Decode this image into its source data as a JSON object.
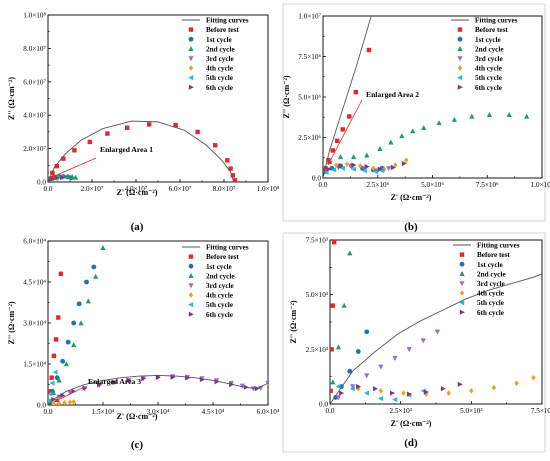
{
  "figure": {
    "panels": [
      {
        "id": "a",
        "panel_label": "(a)",
        "xlabel": "Z' (Ω·cm⁻²)",
        "ylabel": "Z'' (Ω·cm⁻²)",
        "xlim": [
          0,
          100000000
        ],
        "ylim": [
          0,
          100000000
        ],
        "x_ticks": [
          "0.0",
          "2.0×10⁷",
          "4.0×10⁷",
          "6.0×10⁷",
          "8.0×10⁷",
          "1.0×10⁸"
        ],
        "y_ticks": [
          "0.0",
          "2.0×10⁷",
          "4.0×10⁷",
          "6.0×10⁷",
          "8.0×10⁷",
          "1.0×10⁸"
        ],
        "annotation": "Enlarged Area 1"
      },
      {
        "id": "b",
        "panel_label": "(b)",
        "xlabel": "Z' (Ω·cm⁻²)",
        "ylabel": "Z'' (Ω·cm⁻²)",
        "xlim": [
          0,
          10000000
        ],
        "ylim": [
          0,
          10000000
        ],
        "x_ticks": [
          "0.0",
          "2.5×10⁶",
          "5.0×10⁶",
          "7.5×10⁶",
          "1.0×10⁷"
        ],
        "y_ticks": [
          "0.0",
          "2.5×10⁶",
          "5.0×10⁶",
          "7.5×10⁶",
          "1.0×10⁷"
        ],
        "annotation": "Enlarged Area 2"
      },
      {
        "id": "c",
        "panel_label": "(c)",
        "xlabel": "Z' (Ω·cm⁻²)",
        "ylabel": "Z'' (Ω·cm⁻²)",
        "xlim": [
          0,
          60000
        ],
        "ylim": [
          0,
          60000
        ],
        "x_ticks": [
          "0.0",
          "1.5×10⁴",
          "3.0×10⁴",
          "4.5×10⁴",
          "6.0×10⁴"
        ],
        "y_ticks": [
          "0.0",
          "1.5×10⁴",
          "3.0×10⁴",
          "4.5×10⁴",
          "6.0×10⁴"
        ],
        "annotation": "Enlarged Area 3"
      },
      {
        "id": "d",
        "panel_label": "(d)",
        "xlabel": "Z' (Ω·cm⁻²)",
        "ylabel": "Z'' (Ω·cm⁻²)",
        "xlim": [
          0,
          7500
        ],
        "ylim": [
          0,
          7500
        ],
        "x_ticks": [
          "0.0",
          "2.5×10³",
          "5.0×10³",
          "7.5×10³"
        ],
        "y_ticks": [
          "0.0",
          "2.5×10³",
          "5.0×10³",
          "7.5×10³"
        ],
        "annotation": ""
      }
    ],
    "legend": [
      {
        "label": "Fitting curves",
        "marker": "line",
        "color": "#555555"
      },
      {
        "label": "Before test",
        "marker": "square",
        "color": "#e8262c"
      },
      {
        "label": "1st cycle",
        "marker": "circle",
        "color": "#1f6fbf"
      },
      {
        "label": "2nd cycle",
        "marker": "triangle",
        "color": "#1a9e6a"
      },
      {
        "label": "3rd cycle",
        "marker": "tri-down",
        "color": "#9a6ad8"
      },
      {
        "label": "4th cycle",
        "marker": "diamond",
        "color": "#f0a018"
      },
      {
        "label": "5th cycle",
        "marker": "tri-left",
        "color": "#20c0c8"
      },
      {
        "label": "6th cycle",
        "marker": "tri-right",
        "color": "#7a3a7a"
      }
    ]
  },
  "chart_data": [
    {
      "type": "scatter",
      "panel": "a",
      "xlabel": "Z' (Ω·cm⁻²)",
      "ylabel": "Z'' (Ω·cm⁻²)",
      "xlim": [
        0,
        100000000
      ],
      "ylim": [
        0,
        100000000
      ],
      "legend_position": "top-right",
      "series": [
        {
          "name": "Before test",
          "x": [
            800000,
            2000000,
            4000000,
            7000000,
            12000000,
            19000000,
            27000000,
            36000000,
            46000000,
            58000000,
            68000000,
            76000000,
            81500000,
            83000000,
            84000000,
            85000000
          ],
          "y": [
            2000000,
            5500000,
            9500000,
            14000000,
            19000000,
            24000000,
            29000000,
            32500000,
            34500000,
            34000000,
            30000000,
            22000000,
            13000000,
            8000000,
            4000000,
            1000000
          ]
        },
        {
          "name": "1st cycle",
          "x": [
            500000,
            1500000,
            3000000,
            5000000,
            7000000,
            9000000,
            10500000
          ],
          "y": [
            1000000,
            2200000,
            3000000,
            3300000,
            3300000,
            3000000,
            2500000
          ]
        },
        {
          "name": "2nd cycle",
          "x": [
            400000,
            1500000,
            3000000,
            5000000,
            7000000,
            9000000,
            11000000,
            12500000
          ],
          "y": [
            1200000,
            2200000,
            3000000,
            3400000,
            3500000,
            3400000,
            3100000,
            2700000
          ]
        },
        {
          "name": "3rd cycle",
          "x": [
            600000,
            2000000,
            4000000
          ],
          "y": [
            900000,
            1800000,
            2300000
          ]
        },
        {
          "name": "4th cycle",
          "x": [
            700000,
            2200000,
            4200000
          ],
          "y": [
            800000,
            1500000,
            2000000
          ]
        },
        {
          "name": "5th cycle",
          "x": [
            500000,
            1800000,
            3800000,
            6000000
          ],
          "y": [
            1000000,
            2000000,
            2600000,
            2800000
          ]
        },
        {
          "name": "6th cycle",
          "x": [
            600000,
            2000000,
            4000000,
            6500000
          ],
          "y": [
            900000,
            1900000,
            2500000,
            2700000
          ]
        },
        {
          "name": "Fitting curves",
          "x": [
            0,
            3000000,
            8000000,
            15000000,
            25000000,
            38000000,
            50000000,
            62000000,
            72000000,
            79000000,
            83000000,
            84500000
          ],
          "y": [
            0,
            9000000,
            17000000,
            25000000,
            32000000,
            36500000,
            36000000,
            31000000,
            22000000,
            13000000,
            6000000,
            0
          ]
        }
      ]
    },
    {
      "type": "scatter",
      "panel": "b",
      "xlabel": "Z' (Ω·cm⁻²)",
      "ylabel": "Z'' (Ω·cm⁻²)",
      "xlim": [
        0,
        10000000
      ],
      "ylim": [
        0,
        10000000
      ],
      "legend_position": "top-right",
      "series": [
        {
          "name": "Before test",
          "x": [
            100000,
            250000,
            450000,
            650000,
            900000,
            1200000,
            1500000,
            2100000
          ],
          "y": [
            600000,
            1100000,
            1700000,
            2300000,
            3000000,
            3800000,
            5300000,
            7900000
          ]
        },
        {
          "name": "1st cycle",
          "x": [
            100000,
            400000,
            800000,
            1300000,
            1800000,
            2300000,
            2700000
          ],
          "y": [
            400000,
            600000,
            750000,
            750000,
            600000,
            500000,
            600000
          ]
        },
        {
          "name": "2nd cycle",
          "x": [
            300000,
            800000,
            1400000,
            2000000,
            2600000,
            3100000,
            3600000,
            4100000,
            4600000,
            5300000,
            6000000,
            6800000,
            7600000,
            8500000,
            9300000
          ],
          "y": [
            1000000,
            1300000,
            1300000,
            1400000,
            1800000,
            2200000,
            2600000,
            2900000,
            3100000,
            3400000,
            3600000,
            3800000,
            3900000,
            3900000,
            3800000
          ]
        },
        {
          "name": "3rd cycle",
          "x": [
            200000,
            700000,
            1300000,
            1900000,
            2500000,
            3000000
          ],
          "y": [
            450000,
            650000,
            700000,
            550000,
            450000,
            600000
          ]
        },
        {
          "name": "4th cycle",
          "x": [
            200000,
            600000,
            1100000,
            1700000,
            2300000,
            2800000,
            3300000,
            3800000
          ],
          "y": [
            500000,
            800000,
            850000,
            750000,
            600000,
            550000,
            800000,
            1100000
          ]
        },
        {
          "name": "5th cycle",
          "x": [
            150000,
            500000,
            900000,
            1400000,
            1900000,
            2400000,
            2700000
          ],
          "y": [
            350000,
            500000,
            600000,
            550000,
            450000,
            400000,
            450000
          ]
        },
        {
          "name": "6th cycle",
          "x": [
            250000,
            800000,
            1400000,
            2000000,
            2600000,
            3200000,
            3700000
          ],
          "y": [
            550000,
            750000,
            800000,
            700000,
            550000,
            650000,
            900000
          ]
        },
        {
          "name": "Fitting curves",
          "x": [
            0,
            300000,
            700000,
            1100000,
            1500000,
            1900000,
            2200000
          ],
          "y": [
            0,
            1700000,
            3400000,
            5100000,
            6800000,
            8600000,
            10000000
          ]
        }
      ]
    },
    {
      "type": "scatter",
      "panel": "c",
      "xlabel": "Z' (Ω·cm⁻²)",
      "ylabel": "Z'' (Ω·cm⁻²)",
      "xlim": [
        0,
        60000
      ],
      "ylim": [
        0,
        60000
      ],
      "legend_position": "top-right",
      "series": [
        {
          "name": "Before test",
          "x": [
            200,
            600,
            1000,
            1600,
            2200,
            2800,
            3500
          ],
          "y": [
            1000,
            5000,
            10000,
            18000,
            24000,
            32000,
            48000
          ]
        },
        {
          "name": "1st cycle",
          "x": [
            300,
            1200,
            2500,
            4000,
            5500,
            7000,
            8500,
            10500,
            12500
          ],
          "y": [
            1000,
            5000,
            10000,
            16000,
            23000,
            30000,
            37000,
            45000,
            50500
          ]
        },
        {
          "name": "2nd cycle",
          "x": [
            400,
            1500,
            3000,
            5000,
            7000,
            9000,
            11000,
            13000,
            15000
          ],
          "y": [
            1000,
            4500,
            9000,
            15000,
            22000,
            30000,
            38000,
            47000,
            57500
          ]
        },
        {
          "name": "3rd cycle",
          "x": [
            1000,
            3000,
            6000,
            10000,
            14000,
            18000,
            22000,
            26000,
            30000,
            34000,
            38000,
            42000,
            46000,
            50000,
            53000,
            56000,
            58000,
            60000
          ],
          "y": [
            1500,
            3000,
            4500,
            6000,
            7200,
            8200,
            9000,
            9700,
            10200,
            10400,
            10200,
            9700,
            9000,
            8000,
            7000,
            6000,
            6200,
            8000
          ]
        },
        {
          "name": "4th cycle",
          "x": [
            1500,
            3000,
            4500,
            6000,
            7000
          ],
          "y": [
            300,
            600,
            800,
            1000,
            1200
          ]
        },
        {
          "name": "5th cycle",
          "x": [
            200,
            600,
            1200,
            2000
          ],
          "y": [
            1500,
            4000,
            8000,
            12000
          ]
        },
        {
          "name": "6th cycle",
          "x": [
            1500,
            4000,
            7000,
            10000,
            14000,
            18000,
            22000,
            26000,
            30000,
            34000,
            38000,
            42000,
            46000,
            50000,
            54000,
            57000
          ],
          "y": [
            2000,
            3500,
            5000,
            6200,
            7400,
            8300,
            9100,
            9700,
            10100,
            10200,
            9900,
            9300,
            8500,
            7500,
            6500,
            6000
          ]
        },
        {
          "name": "Fitting curves",
          "x": [
            0,
            2000,
            5000,
            10000,
            15000,
            20000,
            25000,
            30000,
            35000,
            40000,
            45000,
            50000,
            54000,
            57000,
            60000
          ],
          "y": [
            0,
            2500,
            5000,
            7500,
            9000,
            10000,
            10600,
            10800,
            10600,
            10000,
            9000,
            7600,
            6400,
            6000,
            8000
          ]
        }
      ]
    },
    {
      "type": "scatter",
      "panel": "d",
      "xlabel": "Z' (Ω·cm⁻²)",
      "ylabel": "Z'' (Ω·cm⁻²)",
      "xlim": [
        0,
        7500
      ],
      "ylim": [
        0,
        7500
      ],
      "legend_position": "top-right",
      "series": [
        {
          "name": "Before test",
          "x": [
            20,
            60,
            100,
            150
          ],
          "y": [
            600,
            2500,
            4500,
            7400
          ]
        },
        {
          "name": "1st cycle",
          "x": [
            200,
            400,
            700,
            1000,
            1300
          ],
          "y": [
            300,
            800,
            1500,
            2400,
            3300
          ]
        },
        {
          "name": "2nd cycle",
          "x": [
            100,
            300,
            500,
            700
          ],
          "y": [
            1000,
            2600,
            4500,
            6900
          ]
        },
        {
          "name": "3rd cycle",
          "x": [
            300,
            800,
            1300,
            1800,
            2300,
            2800,
            3300,
            3800
          ],
          "y": [
            300,
            800,
            1300,
            1700,
            2100,
            2500,
            2900,
            3300
          ]
        },
        {
          "name": "4th cycle",
          "x": [
            1000,
            1800,
            2600,
            3400,
            4200,
            5000,
            5800,
            6600,
            7200
          ],
          "y": [
            700,
            600,
            500,
            450,
            500,
            600,
            750,
            950,
            1200
          ]
        },
        {
          "name": "5th cycle",
          "x": [
            300,
            800,
            1300,
            1800,
            2300,
            2800,
            3300
          ],
          "y": [
            800,
            700,
            500,
            250,
            200,
            400,
            600
          ]
        },
        {
          "name": "6th cycle",
          "x": [
            400,
            1000,
            1600,
            2200,
            2800,
            3400,
            4000,
            4600
          ],
          "y": [
            500,
            800,
            700,
            500,
            450,
            550,
            700,
            900
          ]
        },
        {
          "name": "Fitting curves",
          "x": [
            0,
            800,
            1600,
            2400,
            3200,
            4000,
            4800,
            5600,
            6400,
            7200,
            7500
          ],
          "y": [
            0,
            1500,
            2400,
            3200,
            3800,
            4300,
            4800,
            5200,
            5500,
            5800,
            5950
          ]
        }
      ]
    }
  ]
}
